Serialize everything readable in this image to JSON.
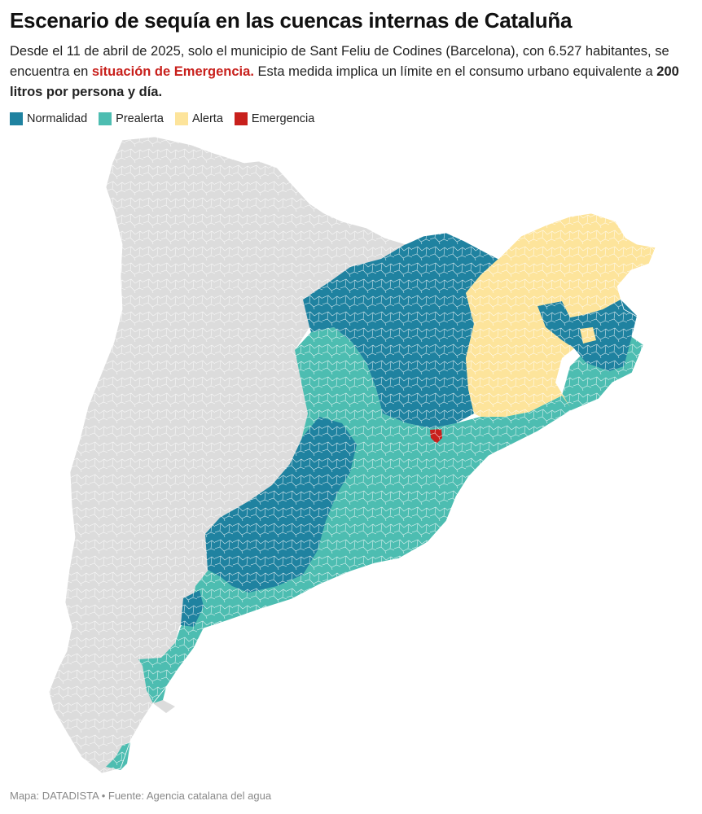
{
  "title": "Escenario de sequía en las cuencas internas de Cataluña",
  "subtitle": {
    "part1": "Desde el 11 de abril de 2025, solo el municipio de Sant Feliu de Codines (Barcelona), con 6.527 habitantes, se encuentra en ",
    "emphasis": "situación de Emergencia.",
    "part2": " Esta medida implica un límite en el consumo urbano equivalente a ",
    "strong": "200 litros por persona y día."
  },
  "legend": [
    {
      "label": "Normalidad",
      "color": "#1f82a0"
    },
    {
      "label": "Prealerta",
      "color": "#4dbdb1"
    },
    {
      "label": "Alerta",
      "color": "#fde49b"
    },
    {
      "label": "Emergencia",
      "color": "#c8201c"
    }
  ],
  "colors": {
    "outside": "#dcdcdc",
    "normalidad": "#1f82a0",
    "prealerta": "#4dbdb1",
    "alerta": "#fde49b",
    "emergencia": "#c8201c"
  },
  "footer": {
    "credit": "Mapa: DATADISTA",
    "separator": " • ",
    "source": "Fuente: Agencia catalana del agua"
  }
}
